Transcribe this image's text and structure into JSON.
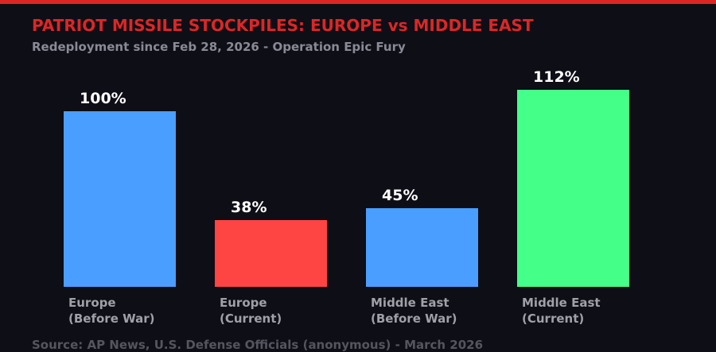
{
  "header": {
    "title": "PATRIOT MISSILE STOCKPILES: EUROPE vs MIDDLE EAST",
    "subtitle": "Redeployment since Feb 28, 2026 - Operation Epic Fury"
  },
  "footer": {
    "source": "Source: AP News, U.S. Defense Officials (anonymous) - March 2026"
  },
  "colors": {
    "accent": "#dc2626",
    "blue": "#4a9eff",
    "red": "#ff4444",
    "green": "#44ff88"
  },
  "bars": [
    {
      "label_line1": "Europe",
      "label_line2": "(Before War)",
      "value_label": "100%",
      "color": "#4a9eff"
    },
    {
      "label_line1": "Europe",
      "label_line2": "(Current)",
      "value_label": "38%",
      "color": "#ff4444"
    },
    {
      "label_line1": "Middle East",
      "label_line2": "(Before War)",
      "value_label": "45%",
      "color": "#4a9eff"
    },
    {
      "label_line1": "Middle East",
      "label_line2": "(Current)",
      "value_label": "112%",
      "color": "#44ff88"
    }
  ],
  "chart_data": {
    "type": "bar",
    "title": "PATRIOT MISSILE STOCKPILES: EUROPE vs MIDDLE EAST",
    "subtitle": "Redeployment since Feb 28, 2026 - Operation Epic Fury",
    "categories": [
      "Europe (Before War)",
      "Europe (Current)",
      "Middle East (Before War)",
      "Middle East (Current)"
    ],
    "values": [
      100,
      38,
      45,
      112
    ],
    "unit": "%",
    "colors": [
      "#4a9eff",
      "#ff4444",
      "#4a9eff",
      "#44ff88"
    ],
    "xlabel": "",
    "ylabel": "",
    "ylim": [
      0,
      112
    ],
    "grid": false,
    "legend": "none",
    "annotations": [
      "Source: AP News, U.S. Defense Officials (anonymous) - March 2026"
    ]
  }
}
